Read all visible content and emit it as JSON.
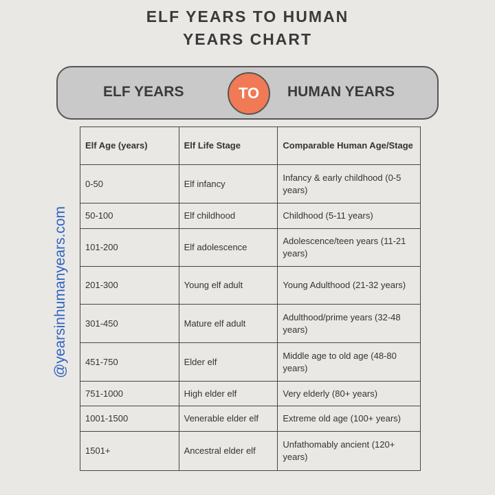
{
  "header": {
    "title": "ELF YEARS TO HUMAN YEARS CHART"
  },
  "banner": {
    "left": "ELF YEARS",
    "middle": "TO",
    "right": "HUMAN YEARS"
  },
  "watermark": "@yearsinhumanyears.com",
  "table": {
    "header": [
      "Elf Age (years)",
      "Elf Life Stage",
      "Comparable Human Age/Stage"
    ],
    "rows": [
      [
        "0-50",
        "Elf infancy",
        "Infancy & early childhood (0-5 years)"
      ],
      [
        "50-100",
        "Elf childhood",
        "Childhood (5-11 years)"
      ],
      [
        "101-200",
        "Elf adolescence",
        "Adolescence/teen years (11-21 years)"
      ],
      [
        "201-300",
        "Young elf adult",
        "Young Adulthood (21-32 years)"
      ],
      [
        "301-450",
        "Mature elf adult",
        "Adulthood/prime years (32-48 years)"
      ],
      [
        "451-750",
        "Elder elf",
        "Middle age to old age (48-80 years)"
      ],
      [
        "751-1000",
        "High elder elf",
        "Very elderly (80+ years)"
      ],
      [
        "1001-1500",
        "Venerable elder elf",
        "Extreme old age (100+ years)"
      ],
      [
        "1501+",
        "Ancestral elder elf",
        "Unfathomably ancient (120+ years)"
      ]
    ]
  }
}
